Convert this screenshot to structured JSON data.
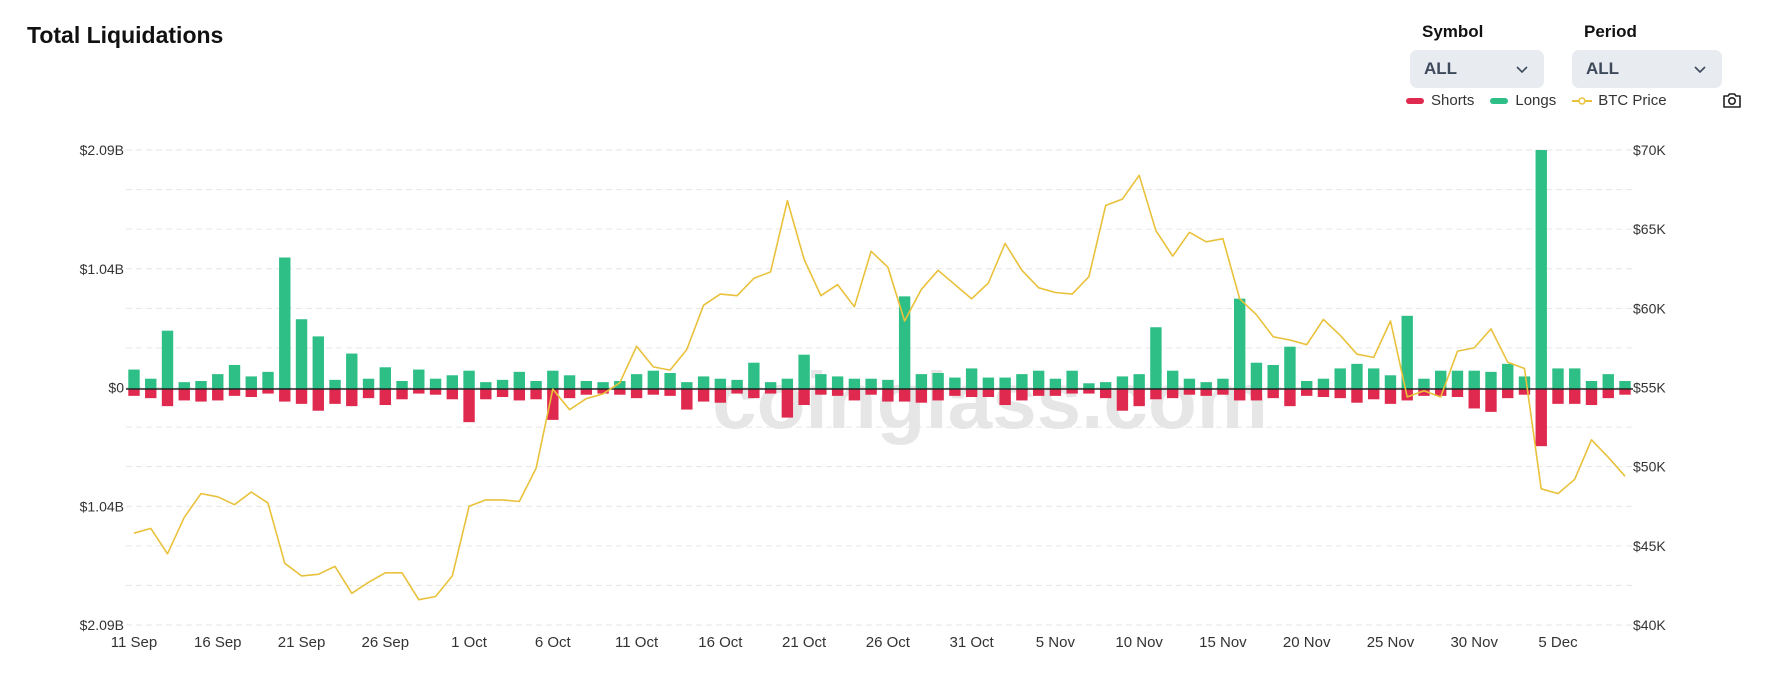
{
  "header": {
    "title": "Total Liquidations"
  },
  "controls": {
    "symbol": {
      "label": "Symbol",
      "value": "ALL"
    },
    "period": {
      "label": "Period",
      "value": "ALL"
    }
  },
  "legend": [
    {
      "name": "Shorts",
      "color": "#e0294f"
    },
    {
      "name": "Longs",
      "color": "#2dbf86"
    },
    {
      "name": "BTC Price",
      "color": "#e9c13b"
    }
  ],
  "watermark": "coinglass.com",
  "chart_data": {
    "type": "bar",
    "title": "Total Liquidations",
    "left_axis": {
      "ticks": [
        "$2.09B",
        "$1.04B",
        "$0",
        "$1.04B",
        "$2.09B"
      ],
      "range": [
        -2.09,
        2.09
      ],
      "unit": "B"
    },
    "right_axis": {
      "ticks": [
        "$70K",
        "$65K",
        "$60K",
        "$55K",
        "$50K",
        "$45K",
        "$40K"
      ],
      "range": [
        40,
        70
      ],
      "unit": "K"
    },
    "x_ticks": [
      "11 Sep",
      "16 Sep",
      "21 Sep",
      "26 Sep",
      "1 Oct",
      "6 Oct",
      "11 Oct",
      "16 Oct",
      "21 Oct",
      "26 Oct",
      "31 Oct",
      "5 Nov",
      "10 Nov",
      "15 Nov",
      "20 Nov",
      "25 Nov",
      "30 Nov",
      "5 Dec"
    ],
    "grid": true,
    "legend_position": "top-right",
    "series": [
      {
        "name": "Longs",
        "color": "#2dbf86",
        "values": [
          0.17,
          0.09,
          0.51,
          0.06,
          0.07,
          0.13,
          0.21,
          0.11,
          0.15,
          1.15,
          0.61,
          0.46,
          0.08,
          0.31,
          0.09,
          0.19,
          0.07,
          0.17,
          0.09,
          0.12,
          0.16,
          0.06,
          0.08,
          0.15,
          0.07,
          0.16,
          0.12,
          0.07,
          0.06,
          0.07,
          0.13,
          0.16,
          0.14,
          0.06,
          0.11,
          0.09,
          0.08,
          0.23,
          0.06,
          0.09,
          0.3,
          0.13,
          0.11,
          0.09,
          0.09,
          0.08,
          0.81,
          0.13,
          0.14,
          0.1,
          0.18,
          0.1,
          0.1,
          0.13,
          0.16,
          0.09,
          0.16,
          0.05,
          0.06,
          0.11,
          0.13,
          0.54,
          0.16,
          0.09,
          0.06,
          0.09,
          0.79,
          0.23,
          0.21,
          0.37,
          0.07,
          0.09,
          0.18,
          0.22,
          0.18,
          0.12,
          0.64,
          0.09,
          0.16,
          0.16,
          0.16,
          0.15,
          0.22,
          0.11,
          2.09,
          0.18,
          0.18,
          0.07,
          0.13,
          0.07
        ]
      },
      {
        "name": "Shorts",
        "color": "#e0294f",
        "values": [
          -0.06,
          -0.08,
          -0.15,
          -0.1,
          -0.11,
          -0.1,
          -0.06,
          -0.07,
          -0.04,
          -0.11,
          -0.13,
          -0.19,
          -0.13,
          -0.15,
          -0.08,
          -0.14,
          -0.09,
          -0.04,
          -0.05,
          -0.09,
          -0.29,
          -0.09,
          -0.07,
          -0.1,
          -0.09,
          -0.27,
          -0.08,
          -0.05,
          -0.04,
          -0.05,
          -0.08,
          -0.05,
          -0.06,
          -0.18,
          -0.11,
          -0.12,
          -0.04,
          -0.08,
          -0.04,
          -0.25,
          -0.14,
          -0.05,
          -0.06,
          -0.1,
          -0.05,
          -0.11,
          -0.11,
          -0.12,
          -0.1,
          -0.06,
          -0.07,
          -0.07,
          -0.14,
          -0.1,
          -0.06,
          -0.06,
          -0.04,
          -0.04,
          -0.08,
          -0.19,
          -0.15,
          -0.09,
          -0.08,
          -0.05,
          -0.06,
          -0.05,
          -0.1,
          -0.1,
          -0.08,
          -0.15,
          -0.06,
          -0.07,
          -0.08,
          -0.12,
          -0.09,
          -0.13,
          -0.1,
          -0.06,
          -0.06,
          -0.07,
          -0.17,
          -0.2,
          -0.08,
          -0.05,
          -0.5,
          -0.13,
          -0.13,
          -0.14,
          -0.08,
          -0.05
        ]
      },
      {
        "name": "BTC Price",
        "color": "#e9c13b",
        "values": [
          45.8,
          46.1,
          44.5,
          46.8,
          48.3,
          48.1,
          47.6,
          48.4,
          47.7,
          43.9,
          43.1,
          43.2,
          43.7,
          42.0,
          42.7,
          43.3,
          43.3,
          41.6,
          41.8,
          43.1,
          47.5,
          47.9,
          47.9,
          47.8,
          49.9,
          54.9,
          53.6,
          54.3,
          54.6,
          55.3,
          57.6,
          56.3,
          56.1,
          57.4,
          60.2,
          60.9,
          60.8,
          61.9,
          62.3,
          66.8,
          63.1,
          60.8,
          61.5,
          60.1,
          63.6,
          62.6,
          59.2,
          61.2,
          62.4,
          61.5,
          60.6,
          61.6,
          64.1,
          62.4,
          61.3,
          61.0,
          60.9,
          62.0,
          66.5,
          66.9,
          68.4,
          64.9,
          63.3,
          64.8,
          64.2,
          64.4,
          60.6,
          59.6,
          58.2,
          58.0,
          57.7,
          59.3,
          58.3,
          57.1,
          56.9,
          59.2,
          54.4,
          54.8,
          54.4,
          57.3,
          57.5,
          58.7,
          56.6,
          56.2,
          48.6,
          48.3,
          49.2,
          51.7,
          50.6,
          49.4
        ]
      }
    ]
  }
}
